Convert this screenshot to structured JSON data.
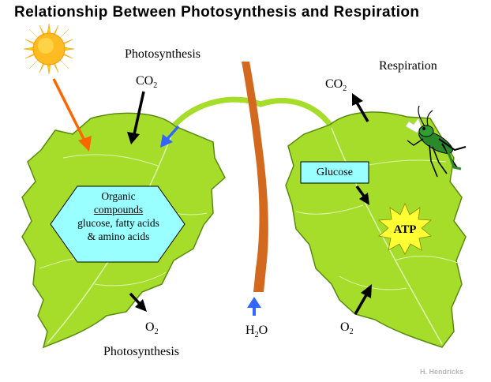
{
  "title": "Relationship Between Photosynthesis and Respiration",
  "labels": {
    "photosynthesis_top": "Photosynthesis",
    "photosynthesis_bottom": "Photosynthesis",
    "respiration": "Respiration",
    "co2_left_main": "CO",
    "co2_left_sub": "2",
    "co2_right_main": "CO",
    "co2_right_sub": "2",
    "o2_left_main": "O",
    "o2_left_sub": "2",
    "o2_right_main": "O",
    "o2_right_sub": "2",
    "h2o_h": "H",
    "h2o_sub": "2",
    "h2o_o": "O"
  },
  "hexagon": {
    "line1": "Organic",
    "line2": "compounds",
    "line3": "glucose, fatty acids",
    "line4": "& amino acids"
  },
  "glucose": "Glucose",
  "atp": "ATP",
  "credit": "H. Hendricks",
  "colors": {
    "leaf": "#a6dd2b",
    "leaf_edge": "#5a8a10",
    "stem": "#d2691e",
    "sun": "#ffcc00",
    "sunray_arrow": "#ff6600",
    "blue_arrow": "#3366ff",
    "box_fill": "#99ffff",
    "atp_star": "#ffff33"
  }
}
